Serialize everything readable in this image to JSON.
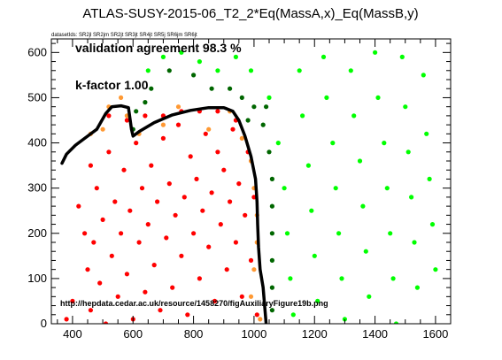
{
  "chart_data": {
    "type": "scatter",
    "title": "ATLAS-SUSY-2015-06_T2_2*Eq(MassA,x)_Eq(MassB,y)",
    "dataset_label": "datasetIds: SR2jl SR2jm SR2jt SR3jt SR4jt SR5j SR6jm SR6jt",
    "annotations": [
      "validation agreement 98.3 %",
      "k-factor 1.00"
    ],
    "source_url": "http://hepdata.cedar.ac.uk/resource/1458270/figAuxiliaryFigure19b.png",
    "xlim": [
      330,
      1650
    ],
    "ylim": [
      0,
      630
    ],
    "xticks": [
      400,
      600,
      800,
      1000,
      1200,
      1400,
      1600
    ],
    "yticks": [
      0,
      100,
      200,
      300,
      400,
      500,
      600
    ],
    "colors": {
      "excluded": "#ff0000",
      "allowed": "#00ff00",
      "excluded_border": "#ff9933",
      "allowed_border": "#006600",
      "curve": "#000000"
    },
    "legend": "none",
    "grid": false,
    "series": [
      {
        "color_key": "excluded",
        "points": [
          [
            400,
            50
          ],
          [
            380,
            10
          ],
          [
            420,
            260
          ],
          [
            440,
            200
          ],
          [
            450,
            120
          ],
          [
            460,
            30
          ],
          [
            470,
            180
          ],
          [
            480,
            300
          ],
          [
            490,
            90
          ],
          [
            500,
            230
          ],
          [
            510,
            0
          ],
          [
            520,
            380
          ],
          [
            530,
            150
          ],
          [
            540,
            270
          ],
          [
            550,
            60
          ],
          [
            560,
            200
          ],
          [
            570,
            340
          ],
          [
            580,
            110
          ],
          [
            590,
            250
          ],
          [
            600,
            10
          ],
          [
            610,
            400
          ],
          [
            620,
            180
          ],
          [
            630,
            300
          ],
          [
            640,
            70
          ],
          [
            650,
            220
          ],
          [
            660,
            350
          ],
          [
            670,
            130
          ],
          [
            680,
            270
          ],
          [
            690,
            30
          ],
          [
            700,
            410
          ],
          [
            710,
            190
          ],
          [
            720,
            310
          ],
          [
            730,
            80
          ],
          [
            740,
            240
          ],
          [
            750,
            440
          ],
          [
            760,
            150
          ],
          [
            770,
            280
          ],
          [
            780,
            20
          ],
          [
            790,
            370
          ],
          [
            800,
            200
          ],
          [
            810,
            320
          ],
          [
            820,
            100
          ],
          [
            830,
            250
          ],
          [
            840,
            420
          ],
          [
            850,
            170
          ],
          [
            860,
            290
          ],
          [
            870,
            50
          ],
          [
            880,
            380
          ],
          [
            890,
            220
          ],
          [
            900,
            340
          ],
          [
            910,
            120
          ],
          [
            920,
            270
          ],
          [
            930,
            430
          ],
          [
            940,
            180
          ],
          [
            950,
            310
          ],
          [
            960,
            60
          ],
          [
            970,
            240
          ],
          [
            980,
            380
          ],
          [
            990,
            140
          ],
          [
            1000,
            280
          ],
          [
            1010,
            20
          ],
          [
            520,
            460
          ],
          [
            580,
            450
          ],
          [
            640,
            460
          ],
          [
            700,
            460
          ],
          [
            760,
            470
          ],
          [
            820,
            470
          ],
          [
            880,
            470
          ],
          [
            940,
            450
          ],
          [
            460,
            350
          ]
        ]
      },
      {
        "color_key": "allowed",
        "points": [
          [
            650,
            560
          ],
          [
            700,
            590
          ],
          [
            760,
            600
          ],
          [
            820,
            580
          ],
          [
            880,
            560
          ],
          [
            940,
            590
          ],
          [
            990,
            560
          ],
          [
            1050,
            500
          ],
          [
            1080,
            400
          ],
          [
            1100,
            300
          ],
          [
            1110,
            200
          ],
          [
            1120,
            100
          ],
          [
            1130,
            20
          ],
          [
            1150,
            560
          ],
          [
            1160,
            460
          ],
          [
            1180,
            350
          ],
          [
            1190,
            250
          ],
          [
            1200,
            150
          ],
          [
            1210,
            50
          ],
          [
            1230,
            590
          ],
          [
            1240,
            500
          ],
          [
            1260,
            400
          ],
          [
            1270,
            300
          ],
          [
            1280,
            200
          ],
          [
            1290,
            100
          ],
          [
            1300,
            10
          ],
          [
            1320,
            560
          ],
          [
            1330,
            460
          ],
          [
            1350,
            360
          ],
          [
            1360,
            260
          ],
          [
            1370,
            160
          ],
          [
            1380,
            60
          ],
          [
            1400,
            600
          ],
          [
            1410,
            500
          ],
          [
            1430,
            400
          ],
          [
            1440,
            300
          ],
          [
            1450,
            200
          ],
          [
            1460,
            100
          ],
          [
            1470,
            0
          ],
          [
            1490,
            590
          ],
          [
            1500,
            480
          ],
          [
            1510,
            380
          ],
          [
            1520,
            280
          ],
          [
            1530,
            180
          ],
          [
            1540,
            80
          ],
          [
            1560,
            550
          ],
          [
            1570,
            420
          ],
          [
            1580,
            320
          ],
          [
            1590,
            220
          ],
          [
            1600,
            120
          ]
        ]
      },
      {
        "color_key": "excluded_border",
        "points": [
          [
            520,
            480
          ],
          [
            620,
            420
          ],
          [
            700,
            440
          ],
          [
            750,
            480
          ],
          [
            850,
            430
          ],
          [
            920,
            470
          ],
          [
            960,
            410
          ],
          [
            990,
            360
          ],
          [
            1000,
            300
          ],
          [
            1010,
            240
          ],
          [
            1010,
            180
          ],
          [
            1000,
            120
          ],
          [
            990,
            60
          ],
          [
            1020,
            10
          ],
          [
            500,
            430
          ],
          [
            580,
            460
          ],
          [
            560,
            500
          ],
          [
            460,
            420
          ]
        ]
      },
      {
        "color_key": "allowed_border",
        "points": [
          [
            600,
            430
          ],
          [
            610,
            470
          ],
          [
            660,
            520
          ],
          [
            720,
            560
          ],
          [
            800,
            550
          ],
          [
            860,
            520
          ],
          [
            920,
            520
          ],
          [
            960,
            500
          ],
          [
            1000,
            480
          ],
          [
            1030,
            440
          ],
          [
            1050,
            380
          ],
          [
            1060,
            320
          ],
          [
            1060,
            260
          ],
          [
            1060,
            200
          ],
          [
            1060,
            140
          ],
          [
            1060,
            80
          ],
          [
            1060,
            30
          ],
          [
            1040,
            480
          ],
          [
            980,
            450
          ],
          [
            640,
            490
          ]
        ]
      }
    ],
    "curve": [
      [
        365,
        355
      ],
      [
        380,
        375
      ],
      [
        410,
        395
      ],
      [
        450,
        415
      ],
      [
        480,
        430
      ],
      [
        510,
        465
      ],
      [
        530,
        480
      ],
      [
        560,
        482
      ],
      [
        585,
        478
      ],
      [
        595,
        430
      ],
      [
        600,
        415
      ],
      [
        620,
        425
      ],
      [
        670,
        445
      ],
      [
        730,
        462
      ],
      [
        790,
        472
      ],
      [
        850,
        478
      ],
      [
        900,
        478
      ],
      [
        930,
        470
      ],
      [
        950,
        450
      ],
      [
        970,
        415
      ],
      [
        990,
        370
      ],
      [
        1005,
        320
      ],
      [
        1010,
        270
      ],
      [
        1012,
        220
      ],
      [
        1015,
        170
      ],
      [
        1020,
        120
      ],
      [
        1030,
        80
      ],
      [
        1035,
        40
      ],
      [
        1040,
        0
      ]
    ]
  }
}
